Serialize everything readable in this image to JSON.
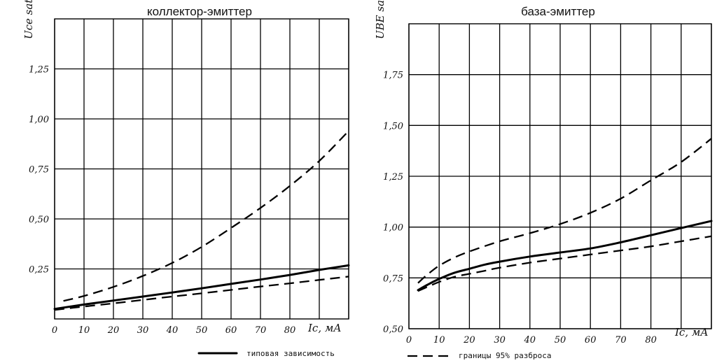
{
  "chart_data": [
    {
      "type": "line",
      "title": "коллектор-эмиттер",
      "ylabel": "Uce sat, B",
      "xlabel": "Ic, мА",
      "x_ticks": [
        0,
        10,
        20,
        30,
        40,
        50,
        60,
        70,
        80
      ],
      "x_tick_labels": [
        "0",
        "10",
        "20",
        "30",
        "40",
        "50",
        "60",
        "70",
        "80"
      ],
      "y_ticks": [
        0.25,
        0.5,
        0.75,
        1.0,
        1.25
      ],
      "y_tick_labels": [
        "0,25",
        "0,50",
        "0,75",
        "1,00",
        "1,25"
      ],
      "xlim": [
        0,
        100
      ],
      "ylim": [
        0,
        1.5
      ],
      "grid": true,
      "series": [
        {
          "style": "solid",
          "x": [
            0,
            10,
            20,
            30,
            40,
            50,
            60,
            70,
            80,
            90,
            100
          ],
          "y": [
            0.05,
            0.072,
            0.092,
            0.112,
            0.132,
            0.153,
            0.175,
            0.197,
            0.22,
            0.245,
            0.268
          ]
        },
        {
          "style": "dashed",
          "x": [
            3,
            10,
            20,
            30,
            40,
            50,
            60,
            70,
            80,
            90,
            100
          ],
          "y": [
            0.09,
            0.115,
            0.16,
            0.215,
            0.28,
            0.36,
            0.455,
            0.555,
            0.665,
            0.79,
            0.94
          ]
        },
        {
          "style": "dashed",
          "x": [
            0,
            10,
            20,
            30,
            40,
            50,
            60,
            70,
            80,
            90,
            100
          ],
          "y": [
            0.045,
            0.062,
            0.078,
            0.095,
            0.112,
            0.128,
            0.145,
            0.162,
            0.178,
            0.195,
            0.212
          ]
        }
      ]
    },
    {
      "type": "line",
      "title": "база-эмиттер",
      "ylabel": "UBE sat, B",
      "xlabel": "Ic, мА",
      "x_ticks": [
        0,
        10,
        20,
        30,
        40,
        50,
        60,
        70,
        80
      ],
      "x_tick_labels": [
        "0",
        "10",
        "20",
        "30",
        "40",
        "50",
        "60",
        "70",
        "80"
      ],
      "y_ticks": [
        0.5,
        0.75,
        1.0,
        1.25,
        1.5,
        1.75
      ],
      "y_tick_labels": [
        "0,50",
        "0,75",
        "1,00",
        "1,25",
        "1,50",
        "1,75"
      ],
      "xlim": [
        0,
        100
      ],
      "ylim": [
        0.5,
        2.0
      ],
      "grid": true,
      "series": [
        {
          "style": "solid",
          "x": [
            3,
            6,
            10,
            15,
            20,
            25,
            30,
            40,
            50,
            60,
            70,
            80,
            90,
            100
          ],
          "y": [
            0.69,
            0.715,
            0.745,
            0.775,
            0.795,
            0.815,
            0.83,
            0.855,
            0.875,
            0.895,
            0.925,
            0.96,
            0.995,
            1.03
          ]
        },
        {
          "style": "dashed",
          "x": [
            3,
            6,
            10,
            15,
            20,
            30,
            40,
            50,
            60,
            70,
            80,
            90,
            100
          ],
          "y": [
            0.725,
            0.765,
            0.81,
            0.85,
            0.88,
            0.93,
            0.97,
            1.015,
            1.07,
            1.14,
            1.23,
            1.32,
            1.435
          ]
        },
        {
          "style": "dashed",
          "x": [
            3,
            6,
            10,
            15,
            20,
            25,
            30,
            40,
            50,
            60,
            70,
            80,
            90,
            100
          ],
          "y": [
            0.685,
            0.705,
            0.73,
            0.755,
            0.77,
            0.785,
            0.8,
            0.825,
            0.845,
            0.865,
            0.885,
            0.905,
            0.93,
            0.955
          ]
        }
      ]
    }
  ],
  "legend": {
    "typical_label": "типовая зависимость",
    "bounds_label": "границы 95% разброса"
  }
}
